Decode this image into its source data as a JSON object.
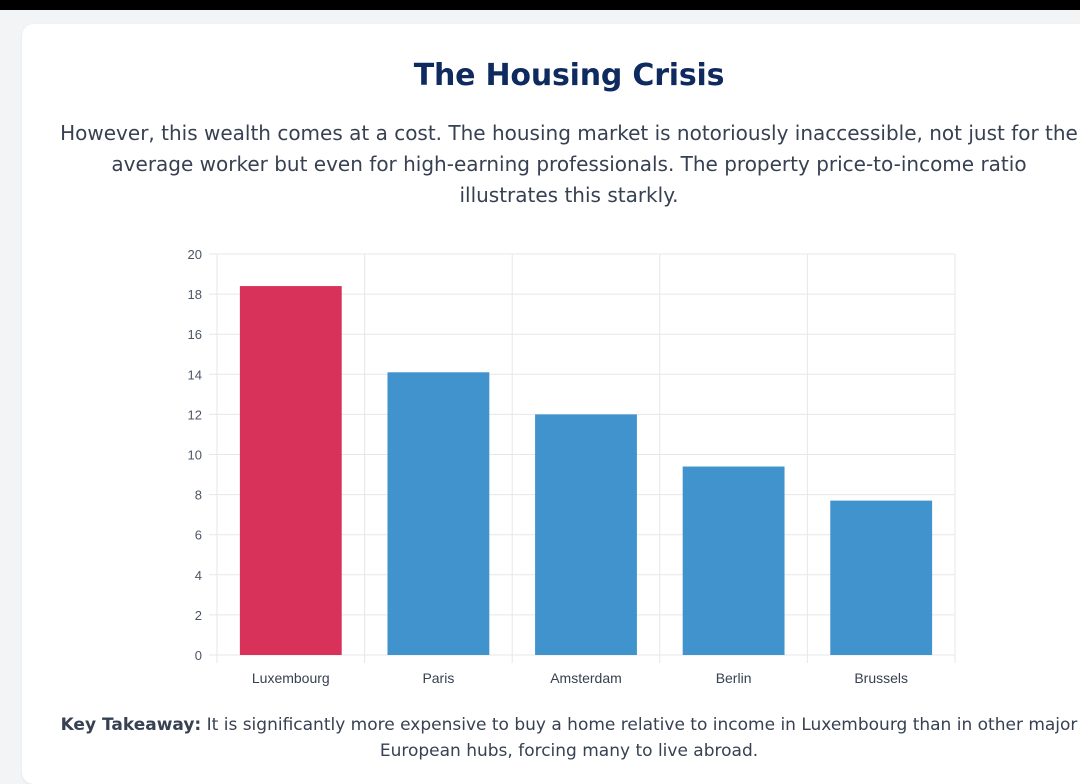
{
  "header": {
    "title": "The Housing Crisis",
    "intro": "However, this wealth comes at a cost. The housing market is notoriously inaccessible, not just for the average worker but even for high-earning professionals. The property price-to-income ratio illustrates this starkly."
  },
  "chart_data": {
    "type": "bar",
    "title": "",
    "xlabel": "",
    "ylabel": "",
    "categories": [
      "Luxembourg",
      "Paris",
      "Amsterdam",
      "Berlin",
      "Brussels"
    ],
    "values": [
      18.4,
      14.1,
      12.0,
      9.4,
      7.7
    ],
    "ylim": [
      0,
      20
    ],
    "yticks": [
      0,
      2,
      4,
      6,
      8,
      10,
      12,
      14,
      16,
      18,
      20
    ],
    "grid": true,
    "colors": {
      "highlight": "#d9325a",
      "default": "#4193cd",
      "grid": "#e5e7eb",
      "tick_text": "#4b5563"
    },
    "highlight_index": 0
  },
  "footer": {
    "takeaway_label": "Key Takeaway:",
    "takeaway_text": " It is significantly more expensive to buy a home relative to income in Luxembourg than in other major European hubs, forcing many to live abroad."
  }
}
